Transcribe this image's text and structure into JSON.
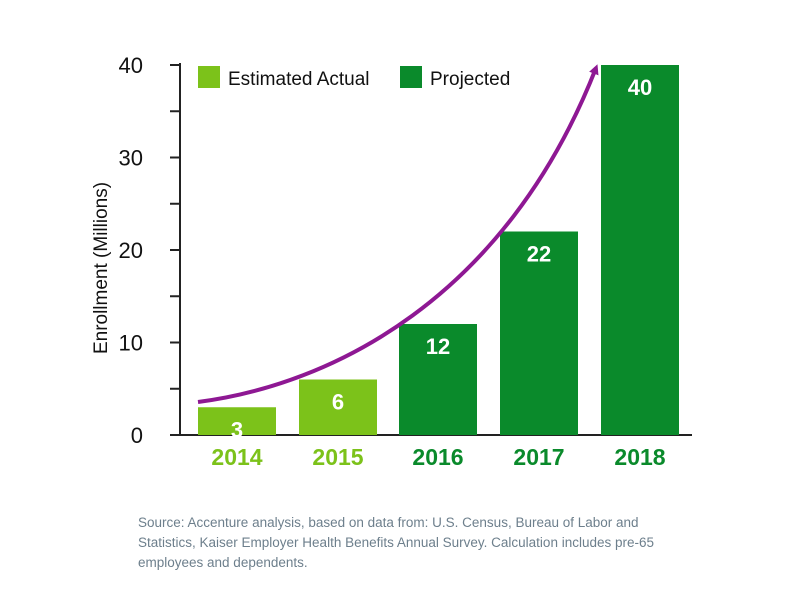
{
  "chart_data": {
    "type": "bar",
    "title": "",
    "xlabel": "",
    "ylabel": "Enrollment (Millions)",
    "ylim": [
      0,
      40
    ],
    "yticks": [
      0,
      10,
      20,
      30,
      40
    ],
    "ytick_labels": [
      "0",
      "10",
      "20",
      "30",
      "40"
    ],
    "categories": [
      "2014",
      "2015",
      "2016",
      "2017",
      "2018"
    ],
    "values": [
      3,
      6,
      12,
      22,
      40
    ],
    "bar_series": [
      "Estimated Actual",
      "Estimated Actual",
      "Projected",
      "Projected",
      "Projected"
    ],
    "data_labels": [
      "3",
      "6",
      "12",
      "22",
      "40"
    ],
    "grid": false,
    "legend_position": "top-left",
    "legend": [
      {
        "name": "Estimated Actual",
        "color": "#7cc21a"
      },
      {
        "name": "Projected",
        "color": "#0a8a2b"
      }
    ],
    "trend_arrow": {
      "color": "#8e1893",
      "direction": "increasing"
    },
    "colors": {
      "estimated": "#7cc21a",
      "projected": "#0a8a2b",
      "arrow": "#8e1893",
      "axis": "#222222",
      "bar_label": "#ffffff"
    }
  },
  "source_note": "Source:  Accenture analysis, based on data from: U.S. Census, Bureau of Labor and Statistics, Kaiser Employer Health Benefits Annual Survey. Calculation includes pre-65 employees and dependents."
}
